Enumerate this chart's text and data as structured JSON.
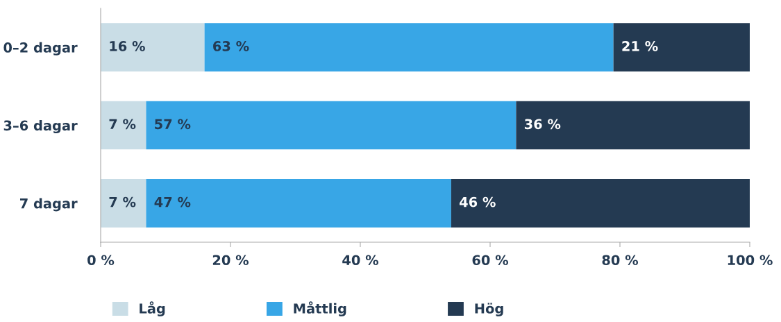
{
  "chart_data": {
    "type": "bar",
    "orientation": "horizontal",
    "stacked": true,
    "categories": [
      "0–2 dagar",
      "3–6 dagar",
      "7 dagar"
    ],
    "series": [
      {
        "name": "Låg",
        "color": "#c9dde6",
        "values": [
          16,
          7,
          7
        ],
        "value_labels": [
          "16 %",
          "7 %",
          "7 %"
        ]
      },
      {
        "name": "Måttlig",
        "color": "#38a6e6",
        "values": [
          63,
          57,
          47
        ],
        "value_labels": [
          "63 %",
          "57 %",
          "47 %"
        ]
      },
      {
        "name": "Hög",
        "color": "#243a52",
        "values": [
          21,
          36,
          46
        ],
        "value_labels": [
          "21 %",
          "36 %",
          "46 %"
        ]
      }
    ],
    "xlim": [
      0,
      100
    ],
    "xticks": [
      {
        "value": 0,
        "label": "0 %"
      },
      {
        "value": 20,
        "label": "20 %"
      },
      {
        "value": 40,
        "label": "40 %"
      },
      {
        "value": 60,
        "label": "60 %"
      },
      {
        "value": 80,
        "label": "80 %"
      },
      {
        "value": 100,
        "label": "100 %"
      }
    ],
    "grid": false,
    "legend": "bottom"
  }
}
